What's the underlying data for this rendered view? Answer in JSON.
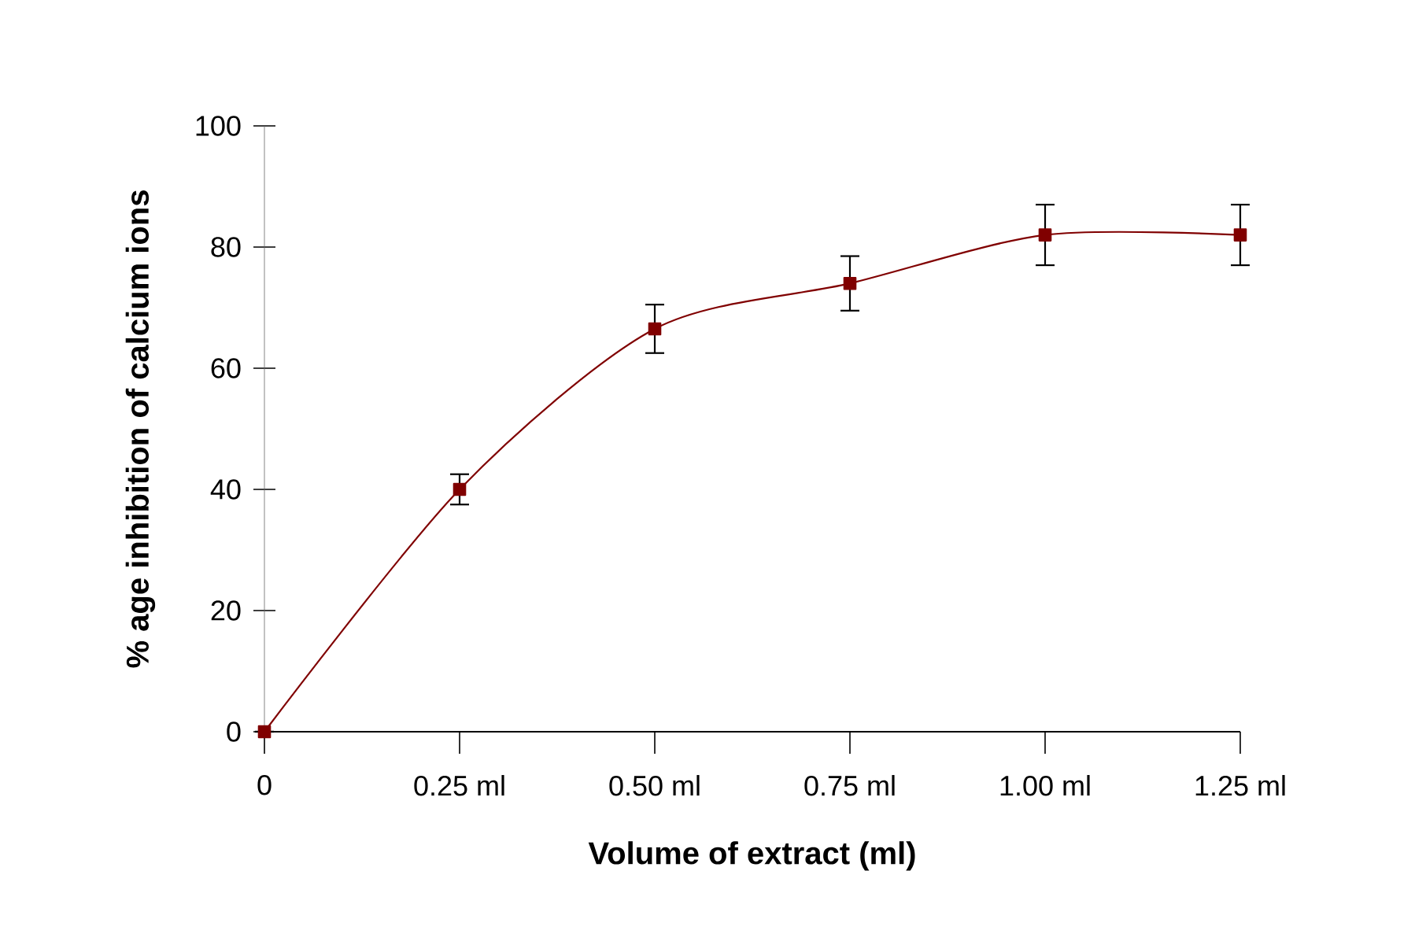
{
  "chart_data": {
    "type": "line",
    "xlabel": "Volume of extract (ml)",
    "ylabel": "% age inhibition of calcium ions",
    "categories": [
      "0",
      "0.25 ml",
      "0.50 ml",
      "0.75 ml",
      "1.00 ml",
      "1.25 ml"
    ],
    "series": [
      {
        "color": "#800000",
        "values": [
          0,
          40,
          66.5,
          74,
          82,
          82
        ],
        "errors": [
          null,
          2.5,
          4,
          4.5,
          5,
          5
        ]
      }
    ],
    "ylim": [
      0,
      100
    ],
    "yticks": [
      0,
      20,
      40,
      60,
      80,
      100
    ],
    "marker": "square",
    "line_style": "solid",
    "grid": false
  }
}
